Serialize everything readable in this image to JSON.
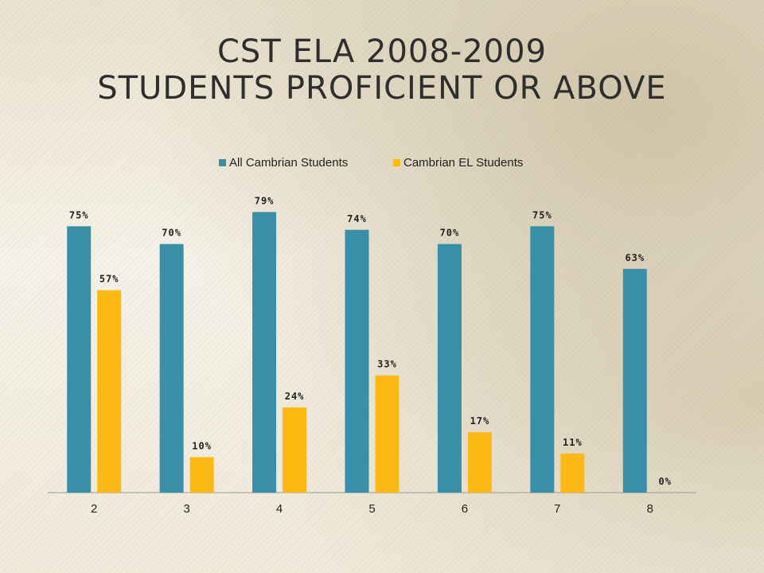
{
  "slide": {
    "title_line1": "CST ELA 2008-2009",
    "title_line2": "Students Proficient or Above"
  },
  "colors": {
    "series_all": "#3a8fa8",
    "series_el": "#fdb913",
    "axis": "#9a9a9a",
    "text": "#222222"
  },
  "chart_data": {
    "type": "bar",
    "categories": [
      "2",
      "3",
      "4",
      "5",
      "6",
      "7",
      "8"
    ],
    "series": [
      {
        "name": "All Cambrian Students",
        "values": [
          75,
          70,
          79,
          74,
          70,
          75,
          63
        ],
        "labels": [
          "75%",
          "70%",
          "79%",
          "74%",
          "70%",
          "75%",
          "63%"
        ]
      },
      {
        "name": "Cambrian EL Students",
        "values": [
          57,
          10,
          24,
          33,
          17,
          11,
          0
        ],
        "labels": [
          "57%",
          "10%",
          "24%",
          "33%",
          "17%",
          "11%",
          "0%"
        ]
      }
    ],
    "ylim": [
      0,
      80
    ],
    "grid": false,
    "legend_position": "top"
  }
}
